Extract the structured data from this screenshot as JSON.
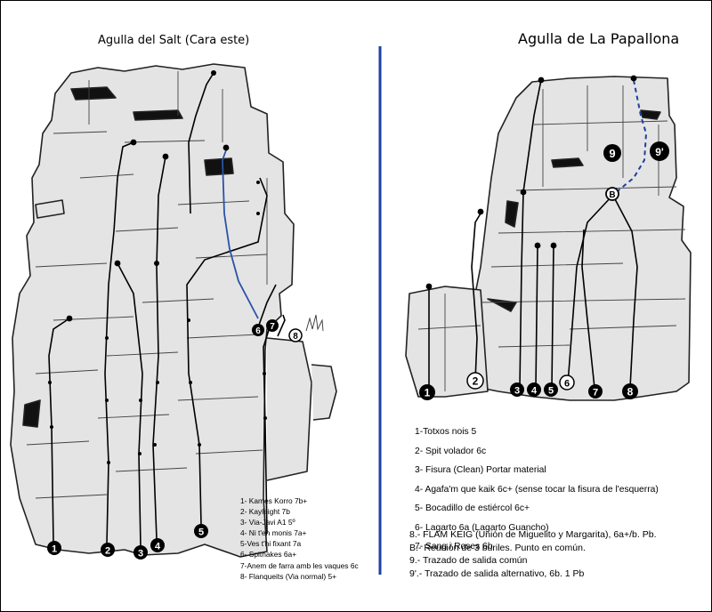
{
  "left_title": "Agulla del Salt (Cara este)",
  "right_title": "Agulla de La Papallona",
  "colors": {
    "divider": "#1f3fa3",
    "highlight_route": "#2a52a8",
    "rock": "#e4e4e4",
    "line": "#000000"
  },
  "left_routes": [
    {
      "label": "1- Kames Korro 7b+"
    },
    {
      "label": "2- Kayleight 7b"
    },
    {
      "label": "3- Via-Javi A1 5º"
    },
    {
      "label": "4- Ni t'en monis 7a+"
    },
    {
      "label": "5-Ves t'hi fixant 7a"
    },
    {
      "label": "6- Spitnakes 6a+"
    },
    {
      "label": "7-Anem de farra amb les vaques 6c"
    },
    {
      "label": "8- Flanqueits (Via normal) 5+"
    }
  ],
  "right_routes": [
    {
      "label": "1-Totxos nois 5"
    },
    {
      "label": "2- Spit volador 6c"
    },
    {
      "label": "3- Fisura (Clean) Portar material"
    },
    {
      "label": "4- Agafa'm que kaik 6c+ (sense tocar la fisura de l'esquerra)"
    },
    {
      "label": "5- Bocadillo de estiércol 6c+"
    },
    {
      "label": "6- Lagarto 6a (Lagarto Guancho)"
    },
    {
      "label": "7- Sang i Roses 6b"
    }
  ],
  "right_notes": [
    {
      "label": "8.- FLAM KEIG (Unión de Miguelito y Margarita), 6a+/b. Pb."
    },
    {
      "label": "B.- Reunión de 3 buriles. Punto en común."
    },
    {
      "label": "9.- Trazado de salida común"
    },
    {
      "label": "9'.- Trazado de salida alternativo, 6b. 1 Pb"
    }
  ],
  "left_markers": [
    "1",
    "2",
    "3",
    "4",
    "5",
    "6",
    "7",
    "8"
  ],
  "right_markers": [
    "1",
    "2",
    "3",
    "4",
    "5",
    "6",
    "7",
    "8",
    "9",
    "9'",
    "B"
  ]
}
